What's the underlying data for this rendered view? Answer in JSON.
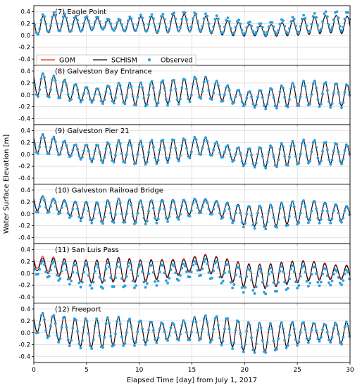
{
  "figure": {
    "ylabel": "Water Surface Elevation [m]",
    "xlabel": "Elapsed Time [day] from July 1, 2017"
  },
  "legend": {
    "entries": [
      {
        "label": "GOM",
        "color": "#e8221e",
        "kind": "line"
      },
      {
        "label": "SCHISM",
        "color": "#111111",
        "kind": "line"
      },
      {
        "label": "Observed",
        "color": "#2a9fde",
        "kind": "dot"
      }
    ],
    "placement": "bottom-left of first panel"
  },
  "chart_data": [
    {
      "type": "line",
      "title": "(7) Eagle Point",
      "xlim": [
        0,
        30
      ],
      "ylim": [
        -0.5,
        0.5
      ],
      "xticks": [
        0,
        5,
        10,
        15,
        20,
        25,
        30
      ],
      "yticks": [
        -0.4,
        -0.2,
        0.0,
        0.2,
        0.4
      ],
      "ytick_labels": [
        "-0.4",
        "-0.2",
        "0.0",
        "0.2",
        "0.4"
      ],
      "grid": true,
      "series": [
        {
          "name": "GOM",
          "color": "#e8221e",
          "x": [
            0,
            2,
            4,
            6,
            8,
            10,
            12,
            14,
            16,
            18,
            20,
            22,
            24,
            26,
            28,
            30
          ],
          "values": [
            0.15,
            0.22,
            0.18,
            0.2,
            0.16,
            0.2,
            0.18,
            0.22,
            0.2,
            0.14,
            0.1,
            0.08,
            0.12,
            0.16,
            0.2,
            0.18
          ]
        },
        {
          "name": "SCHISM",
          "color": "#111111",
          "x": [
            0,
            2,
            4,
            6,
            8,
            10,
            12,
            14,
            16,
            18,
            20,
            22,
            24,
            26,
            28,
            30
          ],
          "values": [
            0.14,
            0.21,
            0.17,
            0.19,
            0.15,
            0.19,
            0.17,
            0.21,
            0.19,
            0.13,
            0.09,
            0.07,
            0.11,
            0.15,
            0.19,
            0.17
          ]
        },
        {
          "name": "Observed",
          "color": "#2a9fde",
          "x": [
            0,
            2,
            4,
            6,
            8,
            10,
            12,
            14,
            16,
            18,
            20,
            22,
            24,
            26,
            28,
            30
          ],
          "values": [
            0.16,
            0.23,
            0.19,
            0.21,
            0.17,
            0.21,
            0.2,
            0.24,
            0.22,
            0.17,
            0.13,
            0.11,
            0.16,
            0.2,
            0.25,
            0.24
          ]
        }
      ]
    },
    {
      "type": "line",
      "title": "(8) Galveston Bay Entrance",
      "xlim": [
        0,
        30
      ],
      "ylim": [
        -0.5,
        0.5
      ],
      "xticks": [
        0,
        5,
        10,
        15,
        20,
        25,
        30
      ],
      "yticks": [
        -0.4,
        -0.2,
        0.0,
        0.2,
        0.4
      ],
      "ytick_labels": [
        "-0.4",
        "-0.2",
        "0.0",
        "0.2",
        "0.4"
      ],
      "grid": true,
      "series": [
        {
          "name": "GOM",
          "color": "#e8221e",
          "x": [
            0,
            2,
            4,
            6,
            8,
            10,
            12,
            14,
            16,
            18,
            20,
            22,
            24,
            26,
            28,
            30
          ],
          "values": [
            0.2,
            0.15,
            0.05,
            0.0,
            0.05,
            0.02,
            0.05,
            0.08,
            0.15,
            0.05,
            -0.05,
            -0.05,
            0.0,
            0.05,
            0.02,
            0.0
          ]
        },
        {
          "name": "SCHISM",
          "color": "#111111",
          "x": [
            0,
            2,
            4,
            6,
            8,
            10,
            12,
            14,
            16,
            18,
            20,
            22,
            24,
            26,
            28,
            30
          ],
          "values": [
            0.19,
            0.14,
            0.04,
            -0.01,
            0.04,
            0.01,
            0.04,
            0.07,
            0.14,
            0.04,
            -0.06,
            -0.06,
            -0.01,
            0.04,
            0.01,
            -0.01
          ]
        },
        {
          "name": "Observed",
          "color": "#2a9fde",
          "x": [
            0,
            2,
            4,
            6,
            8,
            10,
            12,
            14,
            16,
            18,
            20,
            22,
            24,
            26,
            28,
            30
          ],
          "values": [
            0.18,
            0.13,
            0.03,
            -0.02,
            0.03,
            0.0,
            0.03,
            0.06,
            0.13,
            0.03,
            -0.07,
            -0.07,
            -0.02,
            0.03,
            0.0,
            -0.02
          ]
        }
      ]
    },
    {
      "type": "line",
      "title": "(9) Galveston Pier 21",
      "xlim": [
        0,
        30
      ],
      "ylim": [
        -0.5,
        0.5
      ],
      "xticks": [
        0,
        5,
        10,
        15,
        20,
        25,
        30
      ],
      "yticks": [
        -0.4,
        -0.2,
        0.0,
        0.2,
        0.4
      ],
      "ytick_labels": [
        "-0.4",
        "-0.2",
        "0.0",
        "0.2",
        "0.4"
      ],
      "grid": true,
      "series": [
        {
          "name": "GOM",
          "color": "#e8221e",
          "x": [
            0,
            2,
            4,
            6,
            8,
            10,
            12,
            14,
            16,
            18,
            20,
            22,
            24,
            26,
            28,
            30
          ],
          "values": [
            0.2,
            0.15,
            0.06,
            0.02,
            0.06,
            0.03,
            0.06,
            0.09,
            0.16,
            0.06,
            -0.04,
            -0.04,
            0.01,
            0.06,
            0.03,
            0.01
          ]
        },
        {
          "name": "SCHISM",
          "color": "#111111",
          "x": [
            0,
            2,
            4,
            6,
            8,
            10,
            12,
            14,
            16,
            18,
            20,
            22,
            24,
            26,
            28,
            30
          ],
          "values": [
            0.19,
            0.14,
            0.05,
            0.01,
            0.05,
            0.02,
            0.05,
            0.08,
            0.15,
            0.05,
            -0.05,
            -0.05,
            0.0,
            0.05,
            0.02,
            0.0
          ]
        },
        {
          "name": "Observed",
          "color": "#2a9fde",
          "x": [
            0,
            2,
            4,
            6,
            8,
            10,
            12,
            14,
            16,
            18,
            20,
            22,
            24,
            26,
            28,
            30
          ],
          "values": [
            0.19,
            0.14,
            0.05,
            0.01,
            0.05,
            0.02,
            0.05,
            0.08,
            0.15,
            0.05,
            -0.05,
            -0.05,
            0.0,
            0.05,
            0.02,
            0.0
          ]
        }
      ]
    },
    {
      "type": "line",
      "title": "(10) Galveston Railroad Bridge",
      "xlim": [
        0,
        30
      ],
      "ylim": [
        -0.5,
        0.5
      ],
      "xticks": [
        0,
        5,
        10,
        15,
        20,
        25,
        30
      ],
      "yticks": [
        -0.4,
        -0.2,
        0.0,
        0.2,
        0.4
      ],
      "ytick_labels": [
        "-0.4",
        "-0.2",
        "0.0",
        "0.2",
        "0.4"
      ],
      "grid": true,
      "series": [
        {
          "name": "GOM",
          "color": "#e8221e",
          "x": [
            0,
            2,
            4,
            6,
            8,
            10,
            12,
            14,
            16,
            18,
            20,
            22,
            24,
            26,
            28,
            30
          ],
          "values": [
            0.2,
            0.16,
            0.08,
            0.04,
            0.08,
            0.05,
            0.07,
            0.1,
            0.17,
            0.08,
            -0.02,
            -0.03,
            0.02,
            0.07,
            0.04,
            0.02
          ]
        },
        {
          "name": "SCHISM",
          "color": "#111111",
          "x": [
            0,
            2,
            4,
            6,
            8,
            10,
            12,
            14,
            16,
            18,
            20,
            22,
            24,
            26,
            28,
            30
          ],
          "values": [
            0.19,
            0.15,
            0.07,
            0.03,
            0.07,
            0.04,
            0.06,
            0.09,
            0.16,
            0.07,
            -0.03,
            -0.04,
            0.01,
            0.06,
            0.03,
            0.01
          ]
        },
        {
          "name": "Observed",
          "color": "#2a9fde",
          "x": [
            0,
            2,
            4,
            6,
            8,
            10,
            12,
            14,
            16,
            18,
            20,
            22,
            24,
            26,
            28,
            30
          ],
          "values": [
            0.17,
            0.13,
            0.05,
            0.01,
            0.05,
            0.02,
            0.04,
            0.07,
            0.14,
            0.05,
            -0.05,
            -0.06,
            -0.01,
            0.04,
            0.01,
            -0.01
          ]
        }
      ]
    },
    {
      "type": "line",
      "title": "(11) San Luis Pass",
      "xlim": [
        0,
        30
      ],
      "ylim": [
        -0.5,
        0.5
      ],
      "xticks": [
        0,
        5,
        10,
        15,
        20,
        25,
        30
      ],
      "yticks": [
        -0.4,
        -0.2,
        0.0,
        0.2,
        0.4
      ],
      "ytick_labels": [
        "-0.4",
        "-0.2",
        "0.0",
        "0.2",
        "0.4"
      ],
      "grid": true,
      "series": [
        {
          "name": "GOM",
          "color": "#e8221e",
          "x": [
            0,
            2,
            4,
            6,
            8,
            10,
            12,
            14,
            16,
            18,
            20,
            22,
            24,
            26,
            28,
            30
          ],
          "values": [
            0.2,
            0.14,
            0.06,
            0.04,
            0.08,
            0.05,
            0.08,
            0.12,
            0.2,
            0.1,
            -0.02,
            -0.04,
            0.02,
            0.06,
            0.04,
            0.02
          ]
        },
        {
          "name": "SCHISM",
          "color": "#111111",
          "x": [
            0,
            2,
            4,
            6,
            8,
            10,
            12,
            14,
            16,
            18,
            20,
            22,
            24,
            26,
            28,
            30
          ],
          "values": [
            0.16,
            0.11,
            0.04,
            0.02,
            0.06,
            0.03,
            0.06,
            0.1,
            0.18,
            0.08,
            -0.04,
            -0.06,
            0.0,
            0.04,
            0.02,
            0.0
          ]
        },
        {
          "name": "Observed",
          "color": "#2a9fde",
          "x": [
            0,
            2,
            4,
            6,
            8,
            10,
            12,
            14,
            16,
            18,
            20,
            22,
            24,
            26,
            28,
            30
          ],
          "values": [
            0.1,
            0.05,
            -0.03,
            -0.06,
            -0.02,
            -0.05,
            -0.02,
            0.02,
            0.1,
            0.0,
            -0.12,
            -0.14,
            -0.08,
            -0.04,
            -0.06,
            -0.08
          ]
        }
      ]
    },
    {
      "type": "line",
      "title": "(12) Freeport",
      "xlim": [
        0,
        30
      ],
      "ylim": [
        -0.5,
        0.5
      ],
      "xticks": [
        0,
        5,
        10,
        15,
        20,
        25,
        30
      ],
      "yticks": [
        -0.4,
        -0.2,
        0.0,
        0.2,
        0.4
      ],
      "ytick_labels": [
        "-0.4",
        "-0.2",
        "0.0",
        "0.2",
        "0.4"
      ],
      "grid": true,
      "series": [
        {
          "name": "GOM",
          "color": "#e8221e",
          "x": [
            0,
            2,
            4,
            6,
            8,
            10,
            12,
            14,
            16,
            18,
            20,
            22,
            24,
            26,
            28,
            30
          ],
          "values": [
            0.2,
            0.1,
            0.02,
            0.0,
            0.04,
            0.02,
            0.03,
            0.05,
            0.1,
            0.05,
            -0.05,
            -0.08,
            -0.02,
            0.03,
            0.02,
            0.0
          ]
        },
        {
          "name": "SCHISM",
          "color": "#111111",
          "x": [
            0,
            2,
            4,
            6,
            8,
            10,
            12,
            14,
            16,
            18,
            20,
            22,
            24,
            26,
            28,
            30
          ],
          "values": [
            0.19,
            0.09,
            0.01,
            -0.01,
            0.03,
            0.01,
            0.02,
            0.04,
            0.09,
            0.04,
            -0.06,
            -0.09,
            -0.03,
            0.02,
            0.01,
            -0.01
          ]
        },
        {
          "name": "Observed",
          "color": "#2a9fde",
          "x": [
            0,
            2,
            4,
            6,
            8,
            10,
            12,
            14,
            16,
            18,
            20,
            22,
            24,
            26,
            28,
            30
          ],
          "values": [
            0.18,
            0.08,
            0.0,
            -0.02,
            0.02,
            0.0,
            0.01,
            0.03,
            0.08,
            0.03,
            -0.07,
            -0.1,
            -0.04,
            0.01,
            0.0,
            -0.02
          ]
        }
      ]
    }
  ]
}
